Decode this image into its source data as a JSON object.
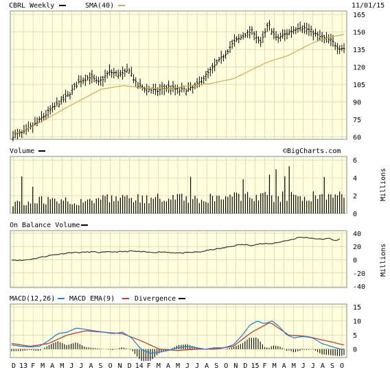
{
  "header": {
    "ticker_label": "CBRL Weekly",
    "sma_label": "SMA(40)",
    "date": "11/01/15",
    "sma_color": "#d4a84a",
    "price_color": "#000000"
  },
  "volume_panel": {
    "label": "Volume",
    "watermark": "©BigCharts.com",
    "units": "Millions"
  },
  "obv_panel": {
    "label": "On Balance Volume",
    "units": "Millions"
  },
  "macd_panel": {
    "macd_label": "MACD(12,26)",
    "ema_label": "MACD EMA(9)",
    "div_label": "Divergence",
    "macd_color": "#2a7fe0",
    "ema_color": "#c0392b"
  },
  "chart_data": [
    {
      "type": "ohlc",
      "title": "CBRL Weekly",
      "x_months": [
        "D",
        "13",
        "F",
        "M",
        "A",
        "M",
        "J",
        "J",
        "A",
        "S",
        "O",
        "N",
        "D",
        "14",
        "F",
        "M",
        "A",
        "M",
        "J",
        "J",
        "A",
        "S",
        "O",
        "N",
        "D",
        "15",
        "F",
        "M",
        "A",
        "M",
        "J",
        "J",
        "A",
        "S",
        "O"
      ],
      "y_ticks": [
        60,
        75,
        90,
        105,
        120,
        135,
        150,
        165
      ],
      "ylim": [
        58,
        168
      ],
      "grid": true,
      "price_anchors": [
        [
          0,
          61
        ],
        [
          6,
          64
        ],
        [
          12,
          72
        ],
        [
          20,
          84
        ],
        [
          28,
          95
        ],
        [
          34,
          107
        ],
        [
          40,
          112
        ],
        [
          44,
          106
        ],
        [
          50,
          116
        ],
        [
          56,
          113
        ],
        [
          60,
          118
        ],
        [
          64,
          104
        ],
        [
          68,
          102
        ],
        [
          74,
          99
        ],
        [
          80,
          103
        ],
        [
          86,
          100
        ],
        [
          92,
          101
        ],
        [
          96,
          106
        ],
        [
          102,
          117
        ],
        [
          108,
          128
        ],
        [
          114,
          141
        ],
        [
          120,
          148
        ],
        [
          124,
          151
        ],
        [
          128,
          140
        ],
        [
          132,
          157
        ],
        [
          136,
          144
        ],
        [
          142,
          149
        ],
        [
          148,
          155
        ],
        [
          154,
          151
        ],
        [
          158,
          146
        ],
        [
          164,
          143
        ],
        [
          168,
          137
        ],
        [
          171,
          136
        ]
      ],
      "sma_anchors": [
        [
          0,
          62
        ],
        [
          20,
          70
        ],
        [
          50,
          86
        ],
        [
          80,
          101
        ],
        [
          100,
          104
        ],
        [
          120,
          102
        ],
        [
          140,
          101
        ],
        [
          160,
          104
        ],
        [
          180,
          106
        ],
        [
          200,
          110
        ],
        [
          215,
          117
        ],
        [
          230,
          124
        ],
        [
          250,
          130
        ],
        [
          270,
          140
        ],
        [
          285,
          145
        ],
        [
          300,
          148
        ]
      ],
      "sma_name": "SMA(40)"
    },
    {
      "type": "bar",
      "title": "Volume",
      "ylabel": "Millions",
      "y_ticks": [
        0,
        2,
        4,
        6
      ],
      "ylim": [
        0,
        6.4
      ],
      "grid": true
    },
    {
      "type": "line",
      "title": "On Balance Volume",
      "ylabel": "Millions",
      "y_ticks": [
        -40,
        -20,
        0,
        20,
        40
      ],
      "ylim": [
        -42,
        44
      ],
      "anchors": [
        [
          0,
          0
        ],
        [
          10,
          -1
        ],
        [
          20,
          1
        ],
        [
          30,
          4
        ],
        [
          40,
          7
        ],
        [
          50,
          9
        ],
        [
          60,
          11
        ],
        [
          70,
          11
        ],
        [
          80,
          12
        ],
        [
          90,
          11
        ],
        [
          100,
          12
        ],
        [
          110,
          12
        ],
        [
          120,
          13
        ],
        [
          130,
          12
        ],
        [
          140,
          11
        ],
        [
          150,
          12
        ],
        [
          160,
          11
        ],
        [
          170,
          10
        ],
        [
          180,
          11
        ],
        [
          190,
          12
        ],
        [
          200,
          15
        ],
        [
          210,
          17
        ],
        [
          220,
          20
        ],
        [
          230,
          23
        ],
        [
          240,
          22
        ],
        [
          250,
          24
        ],
        [
          260,
          24
        ],
        [
          270,
          27
        ],
        [
          280,
          30
        ],
        [
          290,
          34
        ],
        [
          300,
          33
        ],
        [
          310,
          31
        ],
        [
          320,
          32
        ],
        [
          325,
          29
        ],
        [
          330,
          31
        ]
      ],
      "grid": true
    },
    {
      "type": "line",
      "title": "MACD(12,26)",
      "y_ticks": [
        0,
        5,
        10,
        15
      ],
      "ylim": [
        -3,
        16
      ],
      "macd_anchors": [
        [
          0,
          1.5
        ],
        [
          10,
          1
        ],
        [
          20,
          0.8
        ],
        [
          30,
          1
        ],
        [
          40,
          3
        ],
        [
          50,
          5.5
        ],
        [
          60,
          6
        ],
        [
          70,
          7.5
        ],
        [
          80,
          7
        ],
        [
          90,
          6.5
        ],
        [
          100,
          6
        ],
        [
          110,
          5.5
        ],
        [
          120,
          6
        ],
        [
          130,
          4
        ],
        [
          140,
          0
        ],
        [
          150,
          -1.5
        ],
        [
          160,
          -1
        ],
        [
          170,
          -0.5
        ],
        [
          180,
          0.5
        ],
        [
          190,
          1
        ],
        [
          200,
          0.5
        ],
        [
          210,
          0
        ],
        [
          220,
          0.5
        ],
        [
          230,
          0.5
        ],
        [
          240,
          1.5
        ],
        [
          250,
          5
        ],
        [
          258,
          8.5
        ],
        [
          266,
          10
        ],
        [
          274,
          9
        ],
        [
          282,
          10
        ],
        [
          290,
          8
        ],
        [
          298,
          5
        ],
        [
          306,
          4
        ],
        [
          316,
          4.5
        ],
        [
          326,
          4
        ],
        [
          336,
          2
        ],
        [
          346,
          1
        ],
        [
          356,
          0
        ]
      ],
      "ema_anchors": [
        [
          0,
          2
        ],
        [
          20,
          1
        ],
        [
          40,
          2
        ],
        [
          60,
          5
        ],
        [
          80,
          6.5
        ],
        [
          100,
          6
        ],
        [
          120,
          5.5
        ],
        [
          140,
          3
        ],
        [
          160,
          0
        ],
        [
          180,
          -0.5
        ],
        [
          200,
          0
        ],
        [
          220,
          0
        ],
        [
          240,
          1
        ],
        [
          260,
          6
        ],
        [
          280,
          9.5
        ],
        [
          300,
          5
        ],
        [
          320,
          4.5
        ],
        [
          340,
          3
        ],
        [
          360,
          1.5
        ]
      ]
    }
  ]
}
